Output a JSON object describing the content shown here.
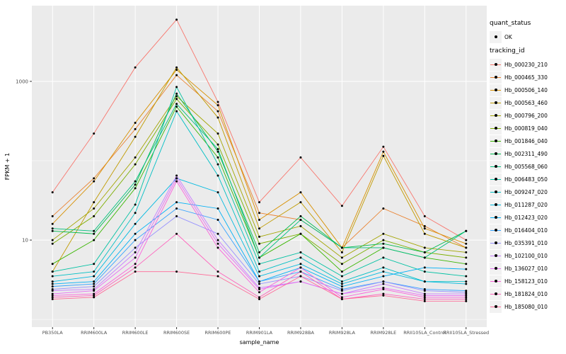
{
  "chart_data": {
    "type": "line",
    "title": "",
    "xlabel": "sample_name",
    "ylabel": "FPKM + 1",
    "y_scale": "log10",
    "ylim": [
      0.8,
      9000
    ],
    "yticks": [
      10,
      1000
    ],
    "ytick_labels": [
      "10",
      "1000"
    ],
    "grid": true,
    "panel_bg": "#EBEBEB",
    "grid_color": "#FFFFFF",
    "point_color": "#000000",
    "legend_position": "right",
    "categories": [
      "PB350LA",
      "RRIM600LA",
      "RRIM600LE",
      "RRIM600SE",
      "RRIM600PE",
      "RRIM901LA",
      "RRIM928BA",
      "RRIM928LA",
      "RRIM928LE",
      "RRII105LA_Control",
      "RRII105LA_Stressed"
    ],
    "series": [
      {
        "name": "Hb_000230_210",
        "color": "#F8766D",
        "values": [
          40,
          220,
          1500,
          6000,
          550,
          30,
          110,
          27,
          150,
          20,
          10
        ]
      },
      {
        "name": "Hb_000465_330",
        "color": "#EA8331",
        "values": [
          20,
          60,
          250,
          1200,
          420,
          22,
          18,
          8,
          25,
          15,
          8
        ]
      },
      {
        "name": "Hb_000506_140",
        "color": "#D89000",
        "values": [
          16,
          55,
          300,
          1400,
          500,
          18,
          40,
          8,
          130,
          14,
          9
        ]
      },
      {
        "name": "Hb_000563_460",
        "color": "#C09B00",
        "values": [
          4,
          30,
          200,
          1500,
          350,
          14,
          30,
          7,
          115,
          12,
          8
        ]
      },
      {
        "name": "Hb_000796_200",
        "color": "#A3A500",
        "values": [
          10,
          25,
          110,
          650,
          220,
          11,
          15,
          6,
          12,
          8,
          7
        ]
      },
      {
        "name": "Hb_000819_040",
        "color": "#7CAE00",
        "values": [
          9,
          20,
          90,
          600,
          160,
          9,
          12,
          5,
          10,
          7,
          6
        ]
      },
      {
        "name": "Hb_001846_040",
        "color": "#39B600",
        "values": [
          5,
          10,
          45,
          480,
          110,
          6,
          12,
          4,
          8,
          6,
          5
        ]
      },
      {
        "name": "Hb_002311_490",
        "color": "#00BB4E",
        "values": [
          13,
          12,
          50,
          700,
          130,
          7,
          20,
          8,
          9,
          7,
          13
        ]
      },
      {
        "name": "Hb_005568_060",
        "color": "#00BF7D",
        "values": [
          14,
          13,
          55,
          520,
          140,
          6,
          18,
          8,
          8,
          6,
          13
        ]
      },
      {
        "name": "Hb_006483_050",
        "color": "#00C1A3",
        "values": [
          4,
          5,
          28,
          850,
          90,
          5,
          7,
          3.5,
          6,
          4,
          3.5
        ]
      },
      {
        "name": "Hb_009247_020",
        "color": "#00BFC4",
        "values": [
          3.5,
          4,
          22,
          420,
          65,
          4,
          6,
          3,
          4.5,
          3,
          3
        ]
      },
      {
        "name": "Hb_011287_020",
        "color": "#00BAE0",
        "values": [
          3,
          3.5,
          16,
          60,
          40,
          3.5,
          5,
          2.8,
          4,
          3,
          2.8
        ]
      },
      {
        "name": "Hb_012423_020",
        "color": "#00B0F6",
        "values": [
          2.8,
          3,
          12,
          30,
          25,
          3,
          4.5,
          2.6,
          3.5,
          4.5,
          4.3
        ]
      },
      {
        "name": "Hb_016404_010",
        "color": "#35A2FF",
        "values": [
          2.6,
          2.8,
          10,
          25,
          18,
          3,
          4,
          2.4,
          3,
          2.4,
          2.3
        ]
      },
      {
        "name": "Hb_035391_010",
        "color": "#9590FF",
        "values": [
          2.4,
          2.6,
          8,
          20,
          12,
          2.8,
          3.5,
          2.3,
          3,
          2.3,
          2.2
        ]
      },
      {
        "name": "Hb_102100_010",
        "color": "#C77CFF",
        "values": [
          2.3,
          2.4,
          7,
          65,
          10,
          2.5,
          3,
          2.1,
          2.8,
          2.1,
          2.1
        ]
      },
      {
        "name": "Hb_136027_010",
        "color": "#E76BF3",
        "values": [
          2.1,
          2.3,
          6,
          60,
          9,
          2.4,
          3,
          2.1,
          2.5,
          2.0,
          2.0
        ]
      },
      {
        "name": "Hb_158123_010",
        "color": "#FA62DB",
        "values": [
          2.0,
          2.1,
          5,
          55,
          8,
          2.2,
          4.5,
          1.9,
          2.4,
          1.9,
          1.9
        ]
      },
      {
        "name": "Hb_181824_010",
        "color": "#FF62BC",
        "values": [
          1.9,
          2.0,
          4.5,
          12,
          4,
          1.9,
          4,
          1.8,
          2.1,
          1.8,
          1.8
        ]
      },
      {
        "name": "Hb_185080_010",
        "color": "#FF6A98",
        "values": [
          1.8,
          1.9,
          4,
          4,
          3.5,
          1.8,
          3.5,
          1.8,
          2.0,
          1.7,
          1.7
        ]
      }
    ]
  },
  "legend": {
    "quant_status": {
      "title": "quant_status",
      "items": [
        {
          "label": "OK"
        }
      ]
    },
    "tracking_id": {
      "title": "tracking_id"
    }
  }
}
